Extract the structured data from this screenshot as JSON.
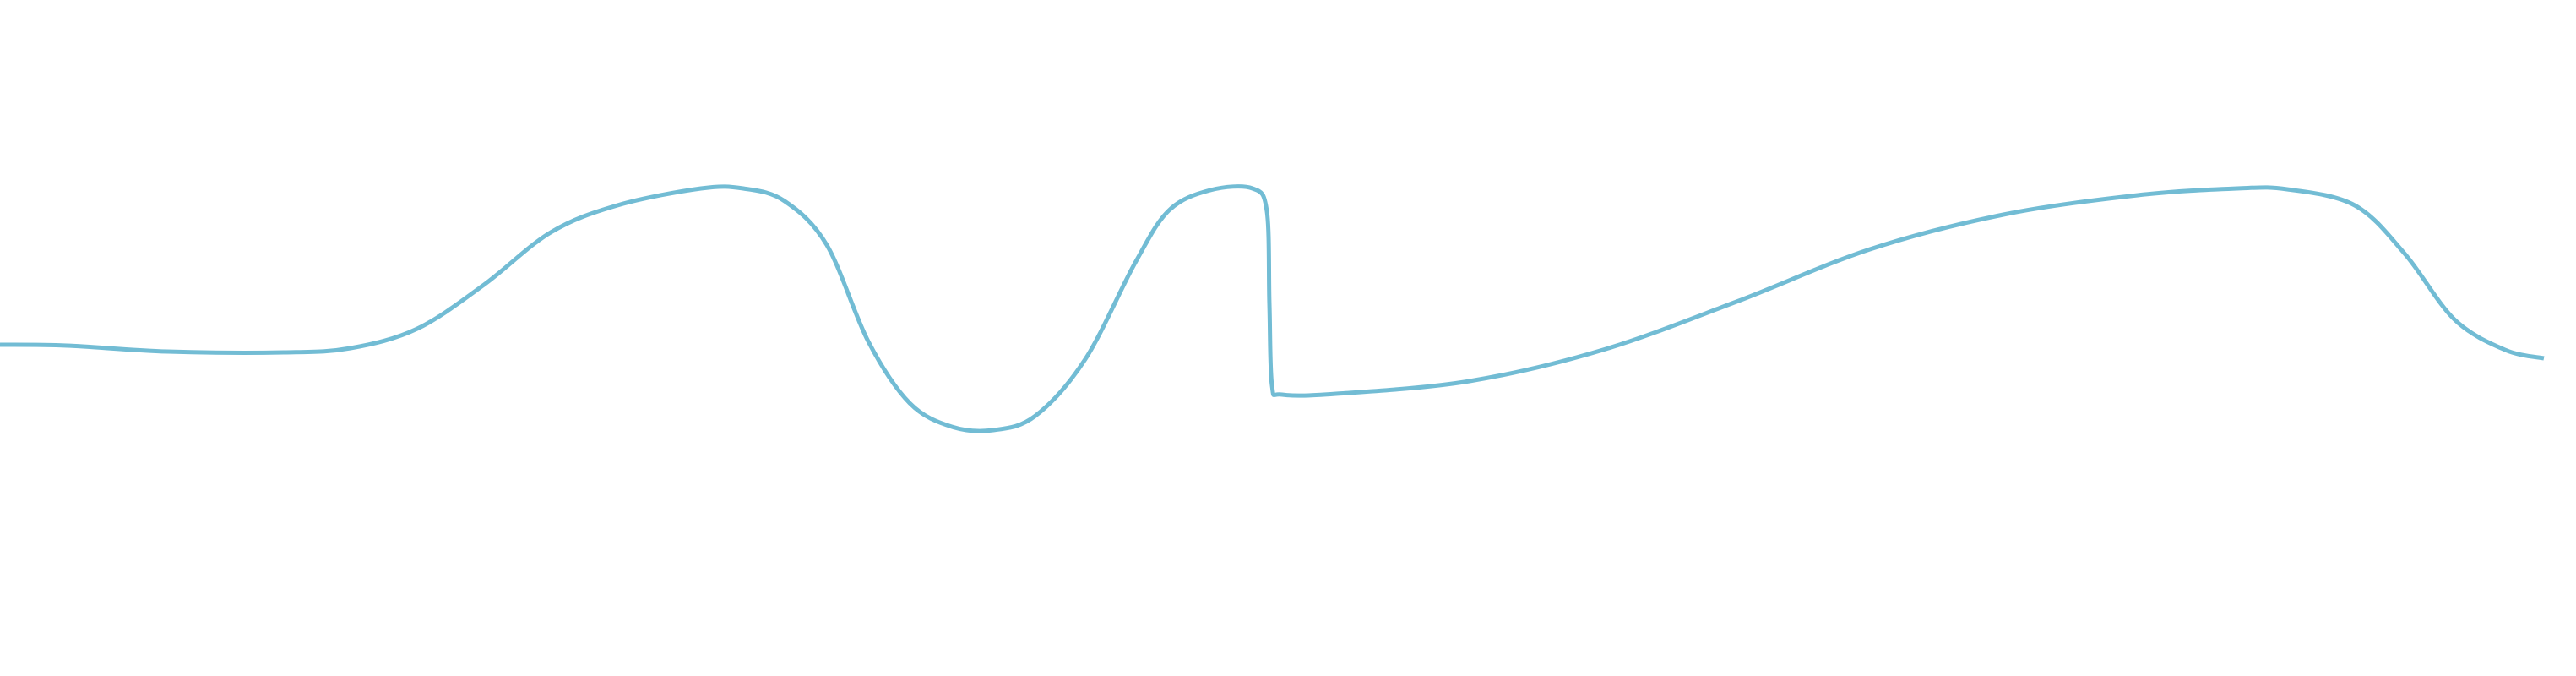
{
  "wave": {
    "stroke_color": "#72bcd4",
    "background_color": "#ffffff"
  }
}
